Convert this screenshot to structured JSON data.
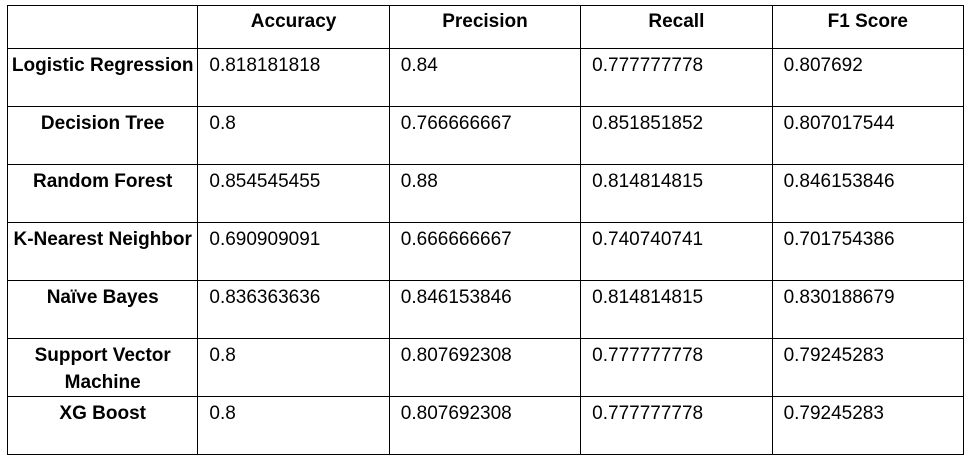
{
  "table": {
    "headers": [
      "",
      "Accuracy",
      "Precision",
      "Recall",
      "F1 Score"
    ],
    "rows": [
      {
        "model": "Logistic Regression",
        "values": [
          "0.818181818",
          "0.84",
          "0.777777778",
          "0.807692"
        ]
      },
      {
        "model": "Decision Tree",
        "values": [
          "0.8",
          "0.766666667",
          "0.851851852",
          "0.807017544"
        ]
      },
      {
        "model": "Random Forest",
        "values": [
          "0.854545455",
          "0.88",
          "0.814814815",
          "0.846153846"
        ]
      },
      {
        "model": "K-Nearest Neighbor",
        "values": [
          "0.690909091",
          "0.666666667",
          "0.740740741",
          "0.701754386"
        ]
      },
      {
        "model": "Naïve Bayes",
        "values": [
          "0.836363636",
          "0.846153846",
          "0.814814815",
          "0.830188679"
        ]
      },
      {
        "model": "Support Vector Machine",
        "values": [
          "0.8",
          "0.807692308",
          "0.777777778",
          "0.79245283"
        ]
      },
      {
        "model": "XG Boost",
        "values": [
          "0.8",
          "0.807692308",
          "0.777777778",
          "0.79245283"
        ]
      }
    ]
  }
}
